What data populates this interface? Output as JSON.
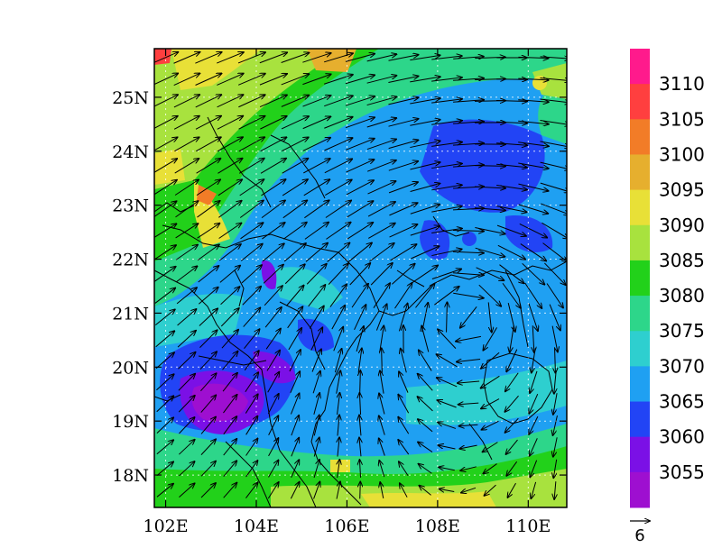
{
  "map": {
    "lon_ticks": [
      "102E",
      "104E",
      "106E",
      "108E",
      "110E"
    ],
    "lat_ticks": [
      "18N",
      "19N",
      "20N",
      "21N",
      "22N",
      "23N",
      "24N",
      "25N"
    ],
    "lon_values": [
      102,
      104,
      106,
      108,
      110
    ],
    "lat_values": [
      18,
      19,
      20,
      21,
      22,
      23,
      24,
      25
    ],
    "lon_range": [
      101.75,
      110.85
    ],
    "lat_range": [
      17.4,
      25.9
    ]
  },
  "colorbar": {
    "labels": [
      "3110",
      "3105",
      "3100",
      "3095",
      "3090",
      "3085",
      "3080",
      "3075",
      "3070",
      "3065",
      "3060",
      "3055"
    ],
    "colors": [
      "#ff1a8c",
      "#ff3f3f",
      "#f27c27",
      "#e6af2e",
      "#e8e037",
      "#a8e23e",
      "#22d11a",
      "#2dd68a",
      "#2ecfcf",
      "#1fa0f2",
      "#2244f5",
      "#7b10e6",
      "#9e0fd0"
    ]
  },
  "vector_reference": {
    "label": "6"
  },
  "field": {
    "cyclone_center": [
      108.6,
      21.0
    ]
  }
}
